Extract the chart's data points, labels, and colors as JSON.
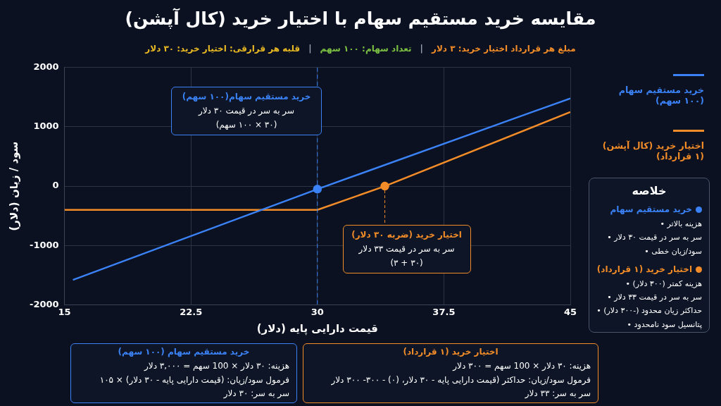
{
  "chart_data": {
    "type": "line",
    "title": "مقایسه خرید مستقیم سهام با اختیار خرید (کال آپشن)",
    "subtitle": "مبلغ هر قرارداد اختیار خرید: ۳ دلار | تعداد سهام: ۱۰۰ سهم | قلبه هر قرارقی: اختیار خرید: ۳۰ دلار",
    "xlabel": "قیمت دارایی پایه (دلار)",
    "ylabel": "سود / زیان (دلار)",
    "series": [
      {
        "name": "خرید مستقیم سهام (۱۰۰ سهم)",
        "color": "#3b82f6",
        "x": [
          15.5,
          30,
          45
        ],
        "values": [
          -1580,
          -50,
          1480
        ],
        "marker": "none"
      },
      {
        "name": "اختیار خرید (کال آپشن) (۱ قرارداد)",
        "color": "#f28c28",
        "x": [
          15,
          30,
          34,
          45
        ],
        "values": [
          -400,
          -400,
          0,
          1250
        ],
        "marker": "none"
      },
      {
        "type": "scatter",
        "color": "#3b82f6",
        "x": [
          30
        ],
        "values": [
          -50
        ],
        "marker": "circle"
      },
      {
        "type": "scatter",
        "color": "#f28c28",
        "x": [
          34
        ],
        "values": [
          0
        ],
        "marker": "circle"
      }
    ],
    "xlim": [
      15,
      45
    ],
    "xticks": [
      15,
      22.5,
      30,
      37.5,
      45
    ],
    "ylim": [
      -2000,
      2000
    ],
    "yticks": [
      -2000,
      -1000,
      0,
      1000,
      2000
    ],
    "ref_lines": [
      {
        "axis": "x",
        "value": 30,
        "color": "#3b82f6",
        "line_style": "dashed"
      }
    ],
    "grid": true,
    "legend": "right",
    "line_style": "solid",
    "annotations": [
      "خرید مستقیم سهام(۱۰۰ سهم)\nسر به سر در قیمت ۳۰ دلار\n(۳۰ × ۱۰۰ سهم)",
      {
        "text": "اختیار خرید (ضربه ۳۰ دلار)\nسر به سر در قیمت ۳۳ دلار\n(۳۰ + ۳)",
        "x": 34,
        "y": 0
      },
      "خلاصه",
      "خرید مستقیم سهام\nهزینه بالاتر •\nسر به سر در قیمت ۳۰ دلار •\nسود/زیان خطی •",
      "اختیار خرید (۱ قرارداد)\nهزینه کمتر (۳۰۰ دلار) •\nسر به سر در قیمت ۳۳ دلار •\nحداکثر زیان محدود (-۳۰۰ دلار) •\nپتانسیل سود نامحدود •",
      "خرید مستقیم سهام (۱۰۰ سهم)\nهزینه: ۳۰ دلار × 100 سهم = ۳,۰۰۰ دلار\nفرمول سود/زیان: (قیمت دارایی پایه - ۳۰ دلار) × ۱۰۵\nسر به سر: ۳۰ دلار",
      "اختیار خرید (۱ قرارداد)\nهزینه: ۳۰ دلار × 100 سهم = ۳۰۰ دلار\nفرمول سود/زیان: حداکثر (قیمت دارایی پایه - ۳۰ دلار، (۰) - ۳۰۰- ۳۰۰ دلار\nسر به سر: ۳۳ دلار"
    ]
  }
}
